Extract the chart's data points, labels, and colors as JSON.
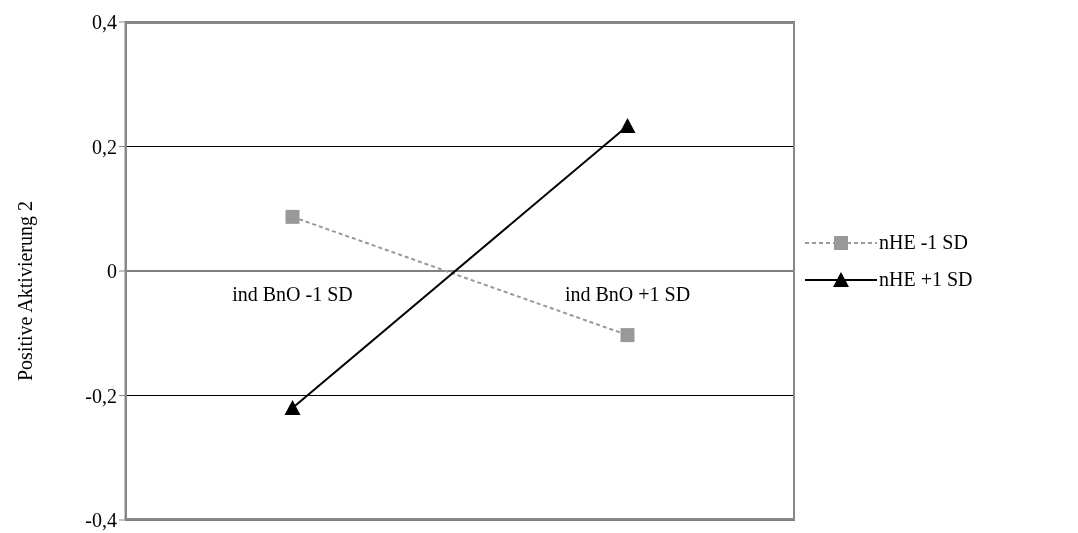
{
  "chart_data": {
    "type": "line",
    "ylabel": "Positive Aktivierung 2",
    "categories": [
      "ind BnO -1 SD",
      "ind BnO +1 SD"
    ],
    "series": [
      {
        "name": "nHE -1 SD",
        "color": "#999999",
        "values": [
          0.087,
          -0.103
        ],
        "marker": "square",
        "line_style": "dashed"
      },
      {
        "name": "nHE +1 SD",
        "color": "#000000",
        "values": [
          -0.22,
          0.233
        ],
        "marker": "triangle",
        "line_style": "solid"
      }
    ],
    "ylim": [
      -0.4,
      0.4
    ],
    "yticks": [
      {
        "value": -0.4,
        "label": "-0,4"
      },
      {
        "value": -0.2,
        "label": "-0,2"
      },
      0,
      {
        "value": 0.2,
        "label": "0,2"
      },
      {
        "value": 0.4,
        "label": "0,4"
      }
    ],
    "grid": "y",
    "legend": "right"
  }
}
